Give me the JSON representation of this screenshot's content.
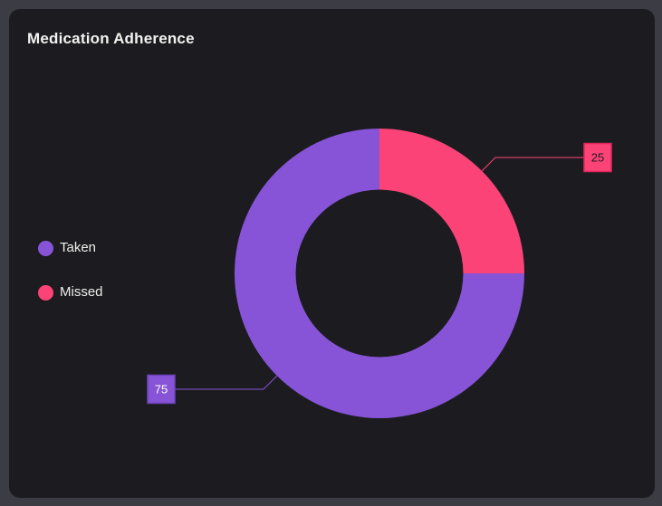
{
  "page": {
    "background_color": "#3c3c44"
  },
  "card": {
    "title": "Medication Adherence",
    "background_color": "#1c1c20",
    "title_color": "#f2f2f2"
  },
  "chart_data": {
    "type": "pie",
    "subtype": "donut",
    "title": "Medication Adherence",
    "categories": [
      "Taken",
      "Missed"
    ],
    "values": [
      75,
      25
    ],
    "data_labels": [
      "75",
      "25"
    ],
    "colors": [
      "#8754d8",
      "#fc4377"
    ],
    "label_box_border_colors": [
      "#6e42b8",
      "#e0265e"
    ],
    "label_text_colors": [
      "#ffffff",
      "#1d1d21"
    ],
    "start_angle_deg": 90,
    "direction": "clockwise",
    "legend_position": "left",
    "legend": [
      {
        "label": "Taken",
        "color": "#8754d8"
      },
      {
        "label": "Missed",
        "color": "#fc4377"
      }
    ]
  }
}
